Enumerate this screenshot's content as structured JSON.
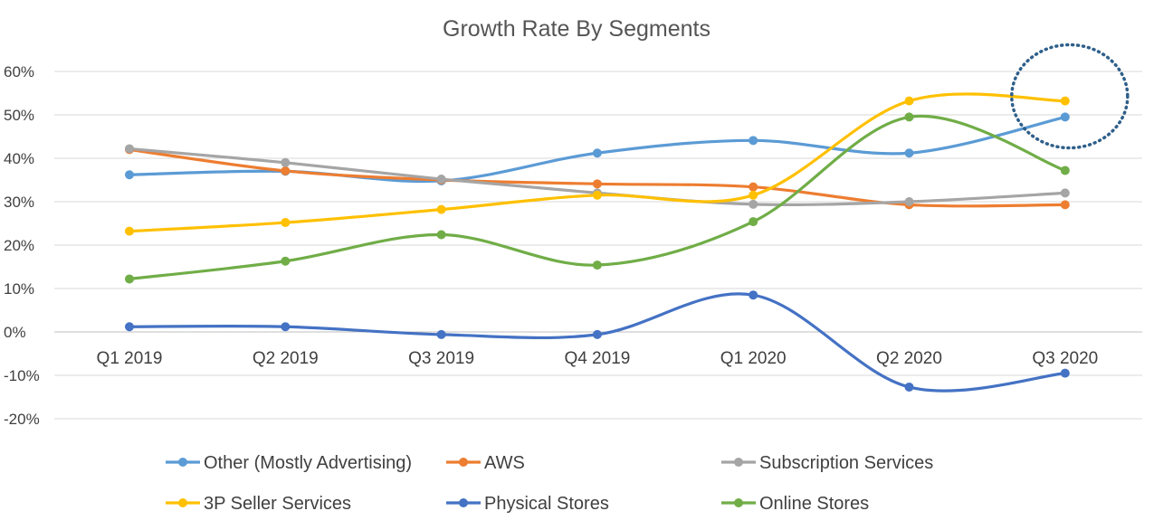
{
  "chart_data": {
    "type": "line",
    "title": "Growth Rate By Segments",
    "xlabel": "",
    "ylabel": "",
    "categories": [
      "Q1 2019",
      "Q2 2019",
      "Q3 2019",
      "Q4 2019",
      "Q1 2020",
      "Q2 2020",
      "Q3 2020"
    ],
    "ylim": [
      -20,
      60
    ],
    "y_ticks": [
      "60%",
      "50%",
      "40%",
      "30%",
      "20%",
      "10%",
      "0%",
      "-10%",
      "-20%"
    ],
    "y_tick_values": [
      60,
      50,
      40,
      30,
      20,
      10,
      0,
      -10,
      -20
    ],
    "grid": true,
    "legend_position": "bottom",
    "smooth": true,
    "annotation": {
      "type": "dotted-circle",
      "target_category": "Q3 2020",
      "target_values": [
        49.5,
        53.2
      ],
      "color": "#2e5f8a"
    },
    "series": [
      {
        "name": "Other (Mostly Advertising)",
        "color": "#5b9bd5",
        "values": [
          36.2,
          37.0,
          34.8,
          41.2,
          44.1,
          41.2,
          49.5
        ]
      },
      {
        "name": "AWS",
        "color": "#ed7d31",
        "values": [
          42.0,
          37.1,
          35.0,
          34.1,
          33.4,
          29.3,
          29.3
        ]
      },
      {
        "name": "Subscription Services",
        "color": "#a5a5a5",
        "values": [
          42.2,
          39.0,
          35.2,
          32.0,
          29.4,
          30.0,
          32.0
        ]
      },
      {
        "name": "3P Seller Services",
        "color": "#ffc000",
        "values": [
          23.2,
          25.2,
          28.2,
          31.5,
          31.5,
          53.2,
          53.2
        ]
      },
      {
        "name": "Physical Stores",
        "color": "#4472c4",
        "values": [
          1.2,
          1.2,
          -0.6,
          -0.6,
          8.5,
          -12.7,
          -9.5
        ]
      },
      {
        "name": "Online Stores",
        "color": "#70ad47",
        "values": [
          12.2,
          16.3,
          22.4,
          15.4,
          25.4,
          49.5,
          37.2
        ]
      }
    ]
  }
}
